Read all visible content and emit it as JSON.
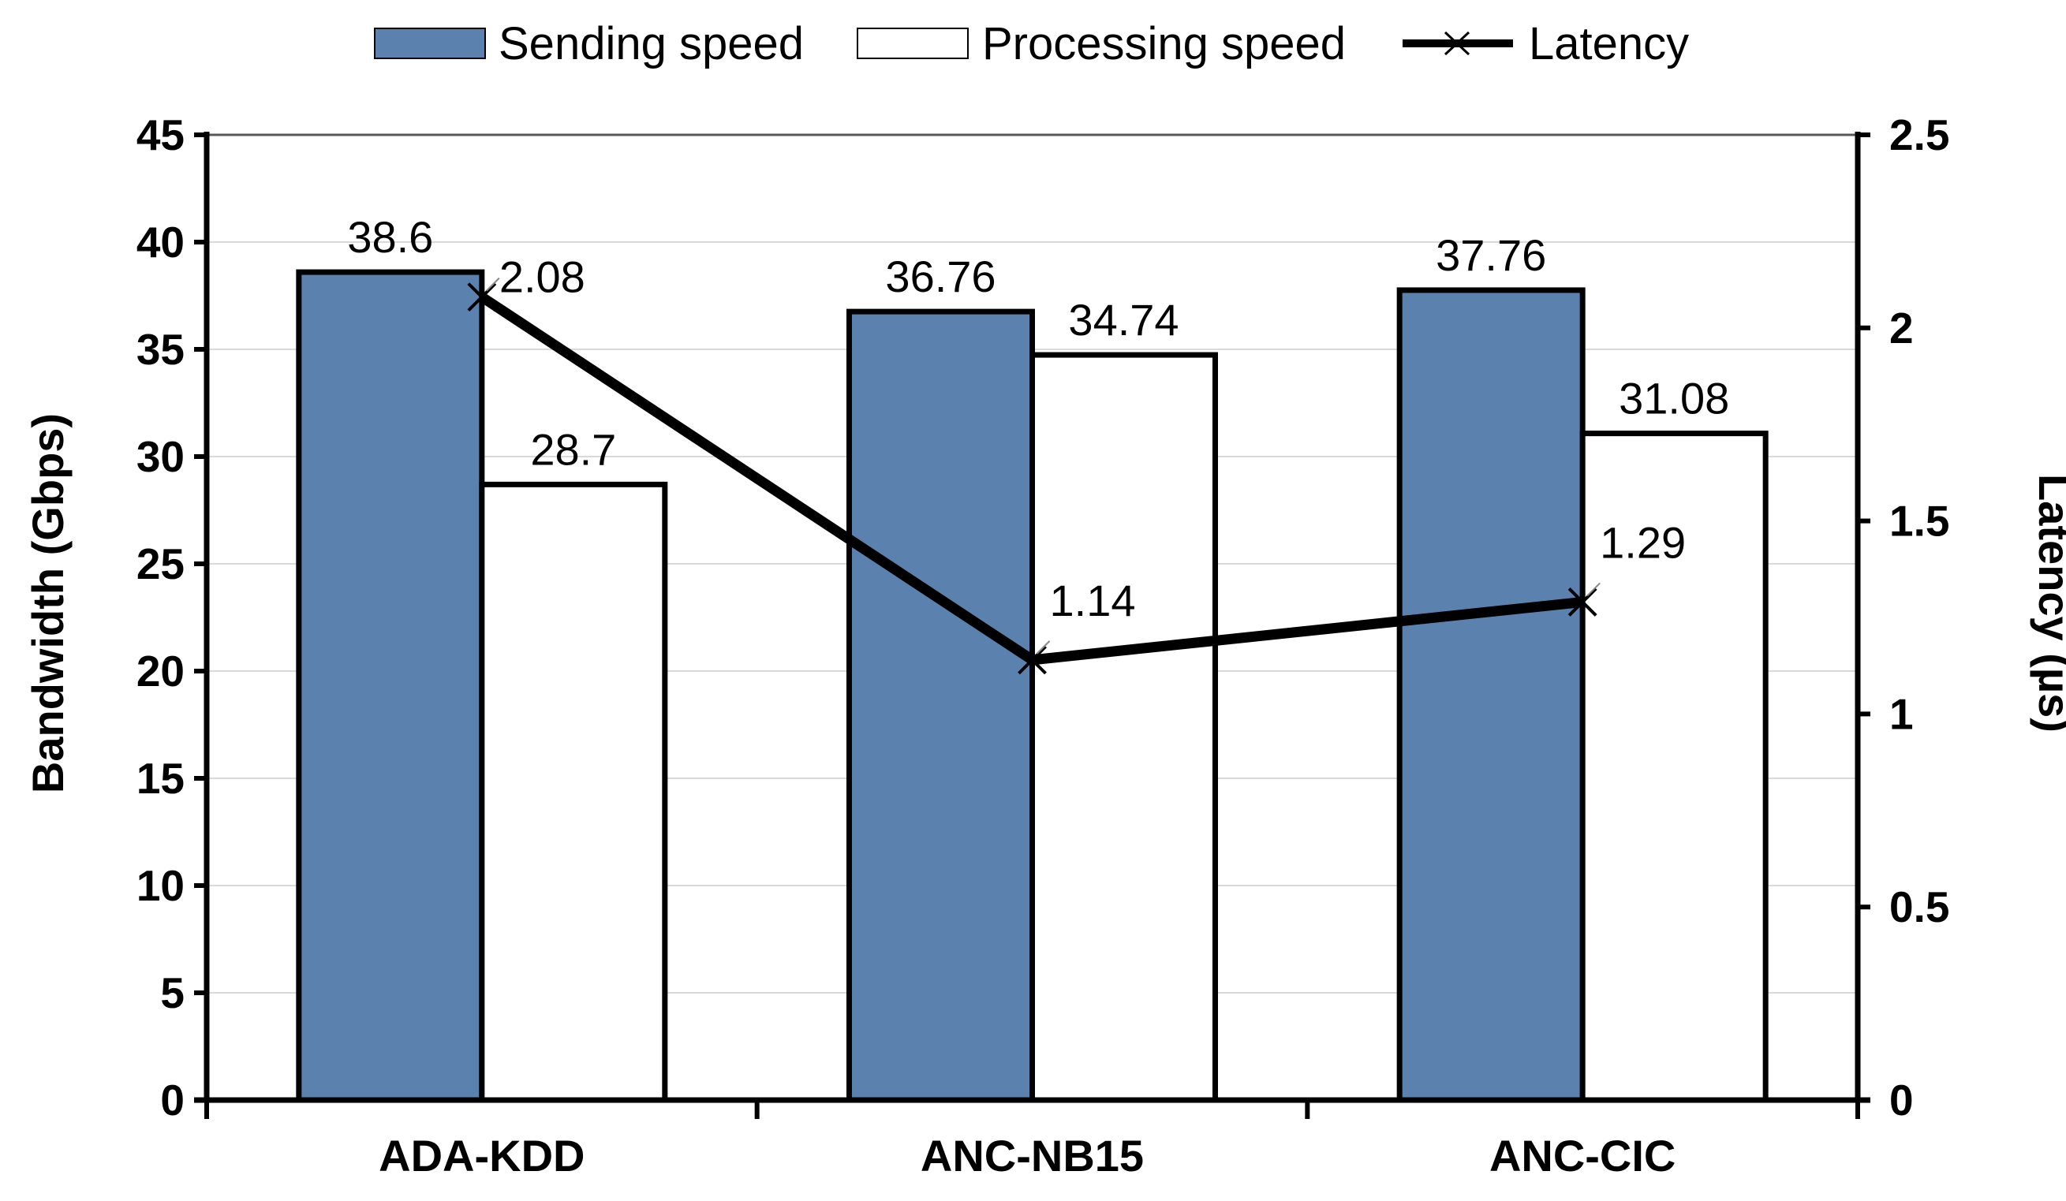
{
  "chart_data": {
    "type": "bar",
    "categories": [
      "ADA-KDD",
      "ANC-NB15",
      "ANC-CIC"
    ],
    "series": [
      {
        "name": "Sending speed",
        "kind": "bar",
        "axis": "left",
        "color": "#5b81ae",
        "values": [
          38.6,
          36.76,
          37.76
        ],
        "labels": [
          "38.6",
          "36.76",
          "37.76"
        ]
      },
      {
        "name": "Processing speed",
        "kind": "bar",
        "axis": "left",
        "color": "#ffffff",
        "values": [
          28.7,
          34.74,
          31.08
        ],
        "labels": [
          "28.7",
          "34.74",
          "31.08"
        ]
      },
      {
        "name": "Latency",
        "kind": "line",
        "marker": "x",
        "axis": "right",
        "color": "#000000",
        "values": [
          2.08,
          1.14,
          1.29
        ],
        "labels": [
          "2.08",
          "1.14",
          "1.29"
        ]
      }
    ],
    "ylabel": "Bandwidth (Gbps)",
    "y2label": "Latency (µs)",
    "ylim": [
      0,
      45
    ],
    "yticks": [
      "0",
      "5",
      "10",
      "15",
      "20",
      "25",
      "30",
      "35",
      "40",
      "45"
    ],
    "y2lim": [
      0,
      2.5
    ],
    "y2ticks": [
      "0",
      "0.5",
      "1",
      "1.5",
      "2",
      "2.5"
    ],
    "grid": true,
    "legend_position": "top"
  }
}
